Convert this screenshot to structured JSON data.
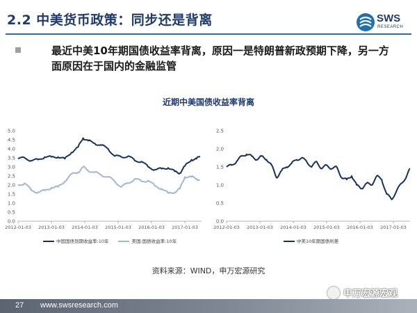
{
  "header": {
    "title": "2.2 中美货币政策：同步还是背离",
    "logo_main": "SWS",
    "logo_sub": "RESEARCH"
  },
  "bullet": "最近中美10年期国债收益率背离，原因一是特朗普新政预期下降，另一方面原因在于国内的金融监管",
  "source": "资料来源：WIND，申万宏源研究",
  "footer": {
    "page": "27",
    "website": "www.swsresearch.com"
  },
  "watermark": "申万宏源宏观",
  "colors": {
    "title": "#1f3a6e",
    "rule": "#2b6cb0",
    "series_dark": "#14305e",
    "series_light": "#9fb6d4"
  },
  "chart_data": [
    {
      "type": "line",
      "title": "近期中美国债收益率背离",
      "ylim": [
        0.0,
        5.0
      ],
      "yticks": [
        "0.0",
        "0.5",
        "1.0",
        "1.5",
        "2.0",
        "2.5",
        "3.0",
        "3.5",
        "4.0",
        "4.5",
        "5.0"
      ],
      "xticks": [
        "2012-01-03",
        "2013-01-03",
        "2014-01-03",
        "2015-01-03",
        "2016-01-03",
        "2017-01-03"
      ],
      "xtick_values": [
        2012.0,
        2013.0,
        2014.0,
        2015.0,
        2016.0,
        2017.0
      ],
      "xlim": [
        2012.0,
        2017.5
      ],
      "legend_position": "bottom",
      "series": [
        {
          "name": "中国国债到期收益率:10年",
          "color": "#14305e",
          "x": [
            2012.0,
            2012.2,
            2012.4,
            2012.6,
            2012.8,
            2013.0,
            2013.2,
            2013.4,
            2013.6,
            2013.8,
            2013.95,
            2014.1,
            2014.3,
            2014.5,
            2014.7,
            2014.9,
            2015.1,
            2015.3,
            2015.5,
            2015.7,
            2015.9,
            2016.1,
            2016.3,
            2016.5,
            2016.7,
            2016.85,
            2017.0,
            2017.2,
            2017.35,
            2017.45
          ],
          "values": [
            3.45,
            3.5,
            3.35,
            3.4,
            3.55,
            3.55,
            3.55,
            3.45,
            3.8,
            4.1,
            4.6,
            4.45,
            4.3,
            4.2,
            4.0,
            3.6,
            3.55,
            3.6,
            3.35,
            3.3,
            3.0,
            2.85,
            2.9,
            2.95,
            2.75,
            2.65,
            3.05,
            3.4,
            3.45,
            3.6
          ]
        },
        {
          "name": "美国:国债收益率:10年",
          "color": "#9fb6d4",
          "x": [
            2012.0,
            2012.2,
            2012.4,
            2012.6,
            2012.8,
            2013.0,
            2013.2,
            2013.4,
            2013.6,
            2013.8,
            2013.95,
            2014.1,
            2014.3,
            2014.5,
            2014.7,
            2014.9,
            2015.1,
            2015.3,
            2015.5,
            2015.7,
            2015.9,
            2016.1,
            2016.3,
            2016.5,
            2016.7,
            2016.85,
            2017.0,
            2017.2,
            2017.35,
            2017.45
          ],
          "values": [
            2.0,
            2.1,
            1.7,
            1.6,
            1.7,
            1.85,
            1.9,
            2.2,
            2.6,
            2.7,
            3.0,
            2.8,
            2.7,
            2.55,
            2.45,
            2.2,
            1.9,
            2.1,
            2.35,
            2.2,
            2.25,
            1.95,
            1.8,
            1.55,
            1.6,
            1.8,
            2.45,
            2.45,
            2.35,
            2.25
          ]
        }
      ]
    },
    {
      "type": "line",
      "ylim": [
        0.0,
        2.5
      ],
      "yticks": [
        "0.0",
        "0.5",
        "1.0",
        "1.5",
        "2.0",
        "2.5"
      ],
      "xticks": [
        "2012-01-03",
        "2013-01-03",
        "2014-01-03",
        "2015-01-03",
        "2016-01-03",
        "2017-01-03"
      ],
      "xtick_values": [
        2012.0,
        2013.0,
        2014.0,
        2015.0,
        2016.0,
        2017.0
      ],
      "xlim": [
        2012.0,
        2017.5
      ],
      "legend_position": "bottom",
      "series": [
        {
          "name": "中美10年期国债利差",
          "color": "#14305e",
          "x": [
            2012.0,
            2012.15,
            2012.3,
            2012.45,
            2012.6,
            2012.75,
            2012.9,
            2013.05,
            2013.2,
            2013.35,
            2013.5,
            2013.65,
            2013.8,
            2013.95,
            2014.1,
            2014.25,
            2014.4,
            2014.55,
            2014.7,
            2014.85,
            2015.0,
            2015.15,
            2015.3,
            2015.45,
            2015.6,
            2015.75,
            2015.9,
            2016.05,
            2016.2,
            2016.35,
            2016.5,
            2016.65,
            2016.8,
            2016.95,
            2017.1,
            2017.25,
            2017.4,
            2017.5
          ],
          "values": [
            1.5,
            1.55,
            1.65,
            1.8,
            1.85,
            1.8,
            1.7,
            1.8,
            1.7,
            1.55,
            1.2,
            1.4,
            1.5,
            1.6,
            1.7,
            1.75,
            1.65,
            1.5,
            1.65,
            1.45,
            1.55,
            1.45,
            1.5,
            1.2,
            1.15,
            1.25,
            1.0,
            0.9,
            1.05,
            1.0,
            1.25,
            1.15,
            0.75,
            0.6,
            0.85,
            1.05,
            1.25,
            1.45
          ]
        }
      ]
    }
  ]
}
